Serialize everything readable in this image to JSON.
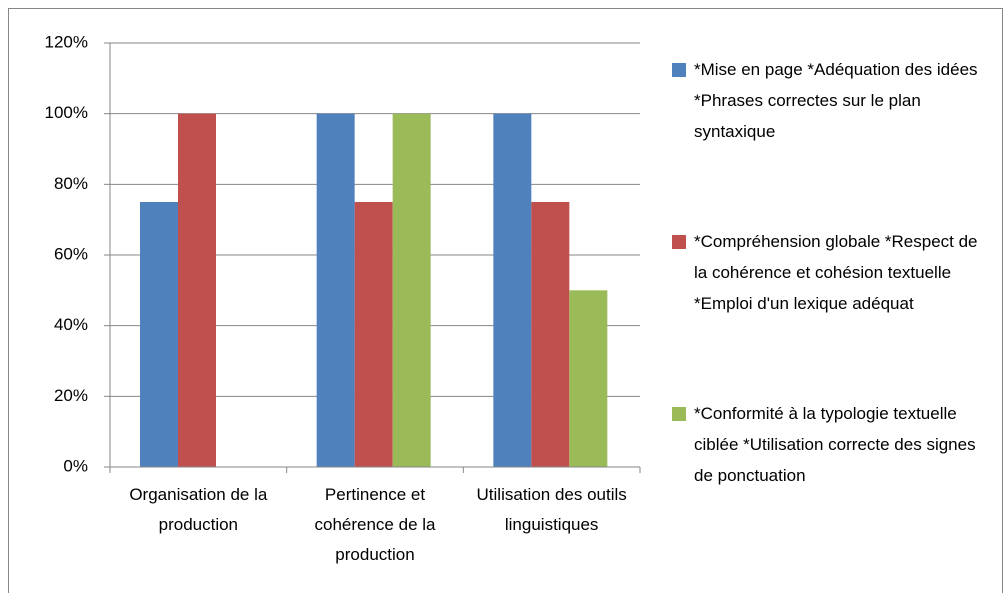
{
  "chart_data": {
    "type": "bar",
    "categories": [
      "Organisation de la production",
      "Pertinence et cohérence de la production",
      "Utilisation des outils linguistiques"
    ],
    "series": [
      {
        "name": "*Mise en page *Adéquation des idées *Phrases correctes sur le plan syntaxique",
        "color": "#4f81bd",
        "values": [
          75,
          100,
          100
        ]
      },
      {
        "name": "*Compréhension globale *Respect de la cohérence et cohésion textuelle *Emploi d'un lexique adéquat",
        "color": "#c0504d",
        "values": [
          100,
          75,
          75
        ]
      },
      {
        "name": "*Conformité à la typologie textuelle ciblée *Utilisation correcte des signes de ponctuation",
        "color": "#9bbb59",
        "values": [
          null,
          100,
          50
        ]
      }
    ],
    "ylim": [
      0,
      120
    ],
    "yticks": [
      {
        "value": 0,
        "label": "0%"
      },
      {
        "value": 20,
        "label": "20%"
      },
      {
        "value": 40,
        "label": "40%"
      },
      {
        "value": 60,
        "label": "60%"
      },
      {
        "value": 80,
        "label": "80%"
      },
      {
        "value": 100,
        "label": "100%"
      },
      {
        "value": 120,
        "label": "120%"
      }
    ],
    "grid": true,
    "legend": "right"
  }
}
